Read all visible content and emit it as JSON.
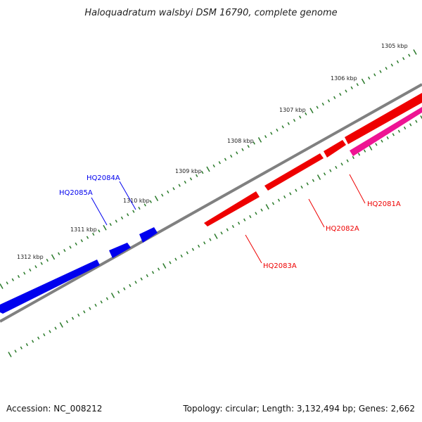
{
  "title": "Haloquadratum walsbyi DSM 16790, complete genome",
  "footer": {
    "accession": "Accession: NC_008212",
    "summary": "Topology: circular; Length: 3,132,494 bp; Genes: 2,662"
  },
  "colors": {
    "backbone": "#808080",
    "tick": "#2a7a2a",
    "reverse_gene": "#0000ee",
    "forward_gene": "#ee0000",
    "forward_gene_alt": "#ee1493"
  },
  "scale_labels": [
    "1305 kbp",
    "1306 kbp",
    "1307 kbp",
    "1308 kbp",
    "1309 kbp",
    "1310 kbp",
    "1311 kbp",
    "1312 kbp"
  ],
  "genes": [
    {
      "label": "HQ2081A",
      "strand": "forward",
      "color": "#ee0000"
    },
    {
      "label": "HQ2082A",
      "strand": "forward",
      "color": "#ee0000"
    },
    {
      "label": "HQ2083A",
      "strand": "forward",
      "color": "#ee0000"
    },
    {
      "label": "HQ2084A",
      "strand": "reverse",
      "color": "#0000ee"
    },
    {
      "label": "HQ2085A",
      "strand": "reverse",
      "color": "#0000ee"
    }
  ]
}
